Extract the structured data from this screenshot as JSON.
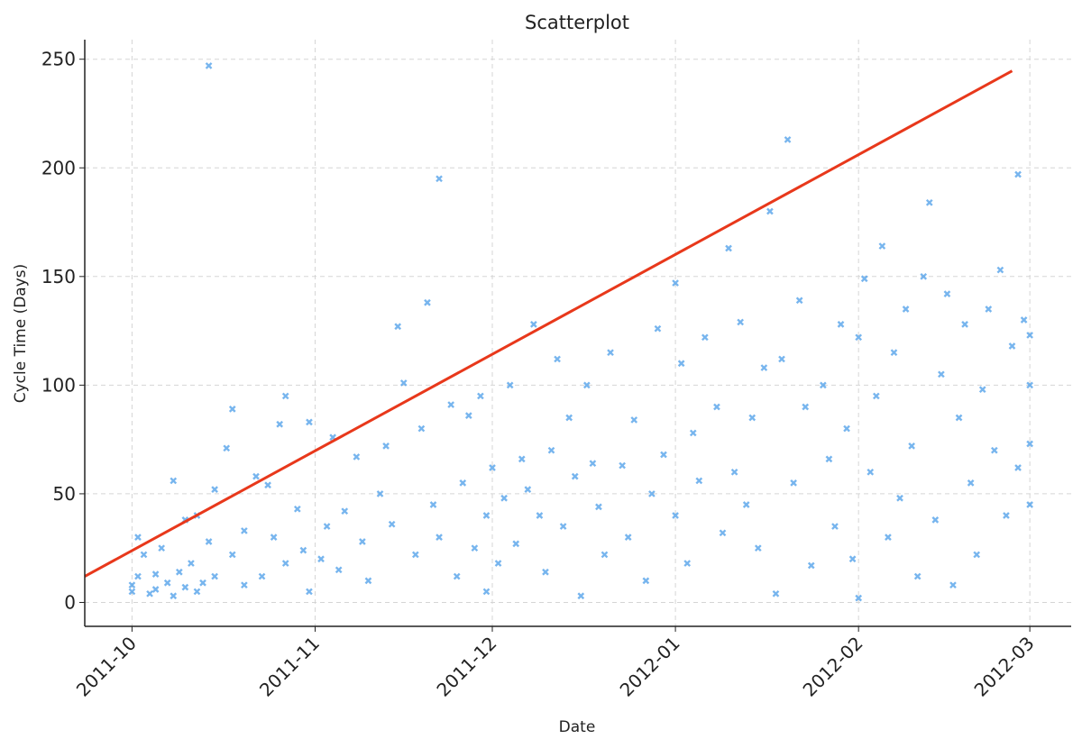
{
  "chart_data": {
    "type": "scatter",
    "title": "Scatterplot",
    "x_label": "Date",
    "y_label": "Cycle Time (Days)",
    "xlim": [
      "2011-09-23",
      "2012-03-08"
    ],
    "ylim": [
      -11,
      259
    ],
    "xticks": [
      {
        "value": "2011-10-01",
        "label": "2011-10"
      },
      {
        "value": "2011-11-01",
        "label": "2011-11"
      },
      {
        "value": "2011-12-01",
        "label": "2011-12"
      },
      {
        "value": "2012-01-01",
        "label": "2012-01"
      },
      {
        "value": "2012-02-01",
        "label": "2012-02"
      },
      {
        "value": "2012-03-01",
        "label": "2012-03"
      }
    ],
    "yticks": [
      0,
      50,
      100,
      150,
      200,
      250
    ],
    "grid": true,
    "series": [
      {
        "color": "#4a9ce8",
        "x": [
          "2011-10-01",
          "2011-10-01",
          "2011-10-02",
          "2011-10-02",
          "2011-10-03",
          "2011-10-04",
          "2011-10-05",
          "2011-10-05",
          "2011-10-06",
          "2011-10-07",
          "2011-10-08",
          "2011-10-08",
          "2011-10-09",
          "2011-10-10",
          "2011-10-10",
          "2011-10-11",
          "2011-10-12",
          "2011-10-12",
          "2011-10-13",
          "2011-10-14",
          "2011-10-15",
          "2011-10-15",
          "2011-10-17",
          "2011-10-18",
          "2011-10-18",
          "2011-10-20",
          "2011-10-20",
          "2011-10-14",
          "2011-10-22",
          "2011-10-23",
          "2011-10-24",
          "2011-10-25",
          "2011-10-26",
          "2011-10-27",
          "2011-10-27",
          "2011-10-29",
          "2011-10-30",
          "2011-10-31",
          "2011-10-31",
          "2011-11-02",
          "2011-11-03",
          "2011-11-04",
          "2011-11-05",
          "2011-11-06",
          "2011-11-08",
          "2011-11-09",
          "2011-11-10",
          "2011-11-12",
          "2011-11-13",
          "2011-11-14",
          "2011-11-15",
          "2011-11-16",
          "2011-11-18",
          "2011-11-19",
          "2011-11-20",
          "2011-11-21",
          "2011-11-22",
          "2011-11-22",
          "2011-11-24",
          "2011-11-25",
          "2011-11-26",
          "2011-11-27",
          "2011-11-28",
          "2011-11-29",
          "2011-11-30",
          "2011-11-30",
          "2011-12-01",
          "2011-12-02",
          "2011-12-03",
          "2011-12-04",
          "2011-12-05",
          "2011-12-06",
          "2011-12-07",
          "2011-12-08",
          "2011-12-09",
          "2011-12-10",
          "2011-12-11",
          "2011-12-12",
          "2011-12-13",
          "2011-12-14",
          "2011-12-15",
          "2011-12-16",
          "2011-12-17",
          "2011-12-18",
          "2011-12-19",
          "2011-12-20",
          "2011-12-21",
          "2011-12-23",
          "2011-12-24",
          "2011-12-25",
          "2011-12-27",
          "2011-12-28",
          "2011-12-29",
          "2011-12-30",
          "2012-01-01",
          "2012-01-01",
          "2012-01-02",
          "2012-01-03",
          "2012-01-04",
          "2012-01-05",
          "2012-01-06",
          "2012-01-08",
          "2012-01-09",
          "2012-01-10",
          "2012-01-11",
          "2012-01-12",
          "2012-01-13",
          "2012-01-14",
          "2012-01-15",
          "2012-01-16",
          "2012-01-17",
          "2012-01-18",
          "2012-01-19",
          "2012-01-20",
          "2012-01-21",
          "2012-01-22",
          "2012-01-23",
          "2012-01-24",
          "2012-01-26",
          "2012-01-27",
          "2012-01-28",
          "2012-01-29",
          "2012-01-30",
          "2012-01-31",
          "2012-02-01",
          "2012-02-01",
          "2012-02-02",
          "2012-02-03",
          "2012-02-04",
          "2012-02-05",
          "2012-02-06",
          "2012-02-07",
          "2012-02-08",
          "2012-02-09",
          "2012-02-10",
          "2012-02-11",
          "2012-02-12",
          "2012-02-13",
          "2012-02-14",
          "2012-02-15",
          "2012-02-16",
          "2012-02-17",
          "2012-02-18",
          "2012-02-19",
          "2012-02-20",
          "2012-02-21",
          "2012-02-22",
          "2012-02-23",
          "2012-02-24",
          "2012-02-25",
          "2012-02-26",
          "2012-02-27",
          "2012-02-28",
          "2012-02-28",
          "2012-02-29",
          "2012-03-01",
          "2012-03-01",
          "2012-03-01",
          "2012-03-01"
        ],
        "values": [
          5,
          8,
          30,
          12,
          22,
          4,
          13,
          6,
          25,
          9,
          56,
          3,
          14,
          38,
          7,
          18,
          40,
          5,
          9,
          28,
          52,
          12,
          71,
          89,
          22,
          33,
          8,
          247,
          58,
          12,
          54,
          30,
          82,
          95,
          18,
          43,
          24,
          5,
          83,
          20,
          35,
          76,
          15,
          42,
          67,
          28,
          10,
          50,
          72,
          36,
          127,
          101,
          22,
          80,
          138,
          45,
          30,
          195,
          91,
          12,
          55,
          86,
          25,
          95,
          40,
          5,
          62,
          18,
          48,
          100,
          27,
          66,
          52,
          128,
          40,
          14,
          70,
          112,
          35,
          85,
          58,
          3,
          100,
          64,
          44,
          22,
          115,
          63,
          30,
          84,
          10,
          50,
          126,
          68,
          147,
          40,
          110,
          18,
          78,
          56,
          122,
          90,
          32,
          163,
          60,
          129,
          45,
          85,
          25,
          108,
          180,
          4,
          112,
          213,
          55,
          139,
          90,
          17,
          100,
          66,
          35,
          128,
          80,
          20,
          122,
          2,
          149,
          60,
          95,
          164,
          30,
          115,
          48,
          135,
          72,
          12,
          150,
          184,
          38,
          105,
          142,
          8,
          85,
          128,
          55,
          22,
          98,
          135,
          70,
          153,
          40,
          118,
          197,
          62,
          130,
          123,
          45,
          100,
          73
        ]
      }
    ],
    "trend_line": {
      "x": [
        "2011-09-23",
        "2012-02-27"
      ],
      "y": [
        12,
        244.6
      ],
      "color": "#e8381b"
    }
  }
}
